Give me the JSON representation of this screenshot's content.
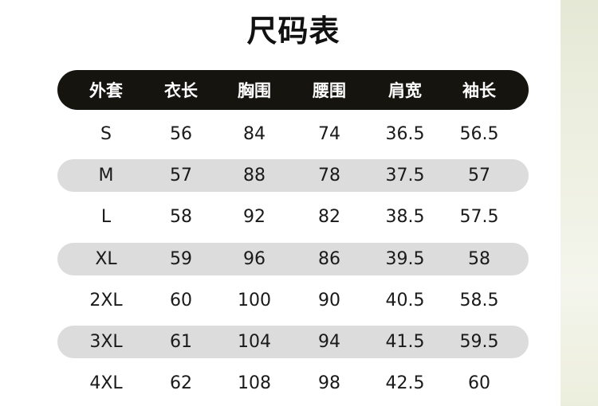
{
  "title": "尺码表",
  "headers": [
    "外套",
    "衣长",
    "胸围",
    "腰围",
    "肩宽",
    "袖长"
  ],
  "rows": [
    [
      "S",
      "56",
      "84",
      "74",
      "36.5",
      "56.5"
    ],
    [
      "M",
      "57",
      "88",
      "78",
      "37.5",
      "57"
    ],
    [
      "L",
      "58",
      "92",
      "82",
      "38.5",
      "57.5"
    ],
    [
      "XL",
      "59",
      "96",
      "86",
      "39.5",
      "58"
    ],
    [
      "2XL",
      "60",
      "100",
      "90",
      "40.5",
      "58.5"
    ],
    [
      "3XL",
      "61",
      "104",
      "94",
      "41.5",
      "59.5"
    ],
    [
      "4XL",
      "62",
      "108",
      "98",
      "42.5",
      "60"
    ]
  ],
  "colors": {
    "header_bg": "#15140f",
    "stripe_bg": "#dcdcdc"
  }
}
